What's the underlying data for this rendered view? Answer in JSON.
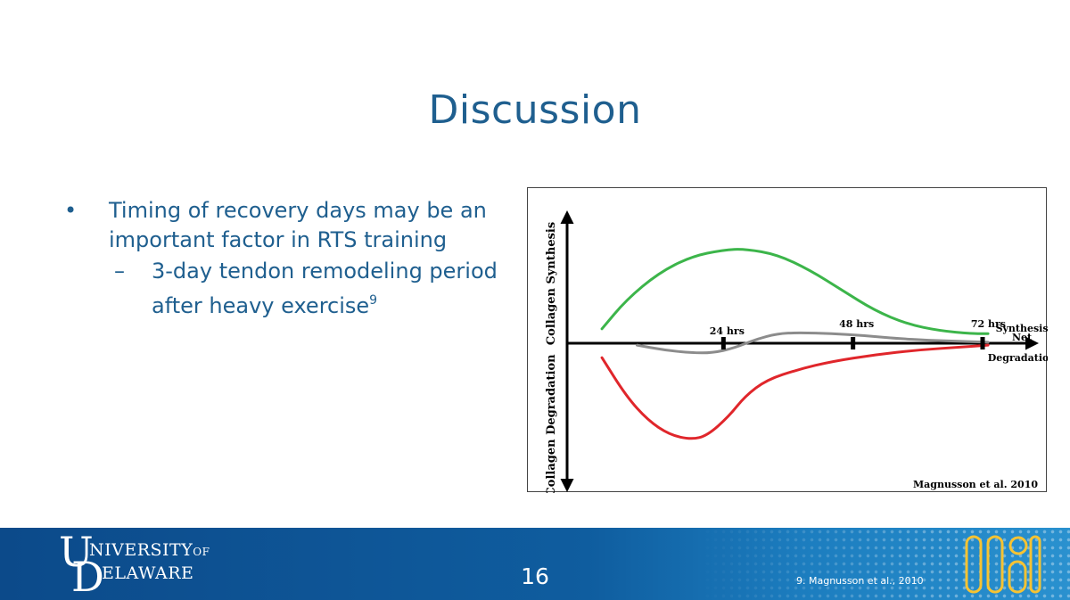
{
  "slide": {
    "title": "Discussion",
    "bullet": "Timing of recovery days may be an important factor in RTS training",
    "sub_bullet": "3-day tendon remodeling period after heavy exercise",
    "sub_bullet_ref": "9",
    "bullet_marker": "•",
    "sub_marker": "–"
  },
  "chart_data": {
    "type": "line",
    "ylabel_top": "Collagen Synthesis",
    "ylabel_bottom": "Collagen Degradation",
    "source": "Magnusson et al. 2010",
    "ticks": [
      {
        "label": "24 hrs",
        "t": 24
      },
      {
        "label": "48 hrs",
        "t": 48
      },
      {
        "label": "72 hrs",
        "t": 72
      }
    ],
    "xlim": [
      0,
      96
    ],
    "ylim": [
      -1,
      1
    ],
    "series": [
      {
        "name": "Synthesis",
        "color": "#3cb54a",
        "points": [
          [
            1.5,
            0.15
          ],
          [
            6,
            0.45
          ],
          [
            12,
            0.73
          ],
          [
            18,
            0.9
          ],
          [
            24,
            0.97
          ],
          [
            28,
            0.98
          ],
          [
            34,
            0.92
          ],
          [
            40,
            0.76
          ],
          [
            46,
            0.55
          ],
          [
            52,
            0.34
          ],
          [
            58,
            0.2
          ],
          [
            64,
            0.13
          ],
          [
            70,
            0.1
          ],
          [
            73,
            0.1
          ]
        ]
      },
      {
        "name": "Net",
        "color": "#8c8c8c",
        "points": [
          [
            8,
            -0.02
          ],
          [
            13,
            -0.07
          ],
          [
            18,
            -0.1
          ],
          [
            22,
            -0.1
          ],
          [
            26,
            -0.05
          ],
          [
            30,
            0.04
          ],
          [
            34,
            0.1
          ],
          [
            38,
            0.11
          ],
          [
            44,
            0.1
          ],
          [
            50,
            0.08
          ],
          [
            56,
            0.05
          ],
          [
            62,
            0.03
          ],
          [
            68,
            0.02
          ],
          [
            73,
            0.01
          ]
        ]
      },
      {
        "name": "Degradation",
        "color": "#e0262b",
        "points": [
          [
            1.5,
            -0.15
          ],
          [
            6,
            -0.55
          ],
          [
            10,
            -0.8
          ],
          [
            14,
            -0.95
          ],
          [
            18,
            -1.0
          ],
          [
            21,
            -0.96
          ],
          [
            25,
            -0.76
          ],
          [
            28,
            -0.55
          ],
          [
            32,
            -0.38
          ],
          [
            38,
            -0.27
          ],
          [
            44,
            -0.19
          ],
          [
            52,
            -0.12
          ],
          [
            60,
            -0.07
          ],
          [
            68,
            -0.04
          ],
          [
            73,
            -0.02
          ]
        ]
      }
    ]
  },
  "footer": {
    "university_line1": "NIVERSITY",
    "university_of": "OF",
    "university_line2": "ELAWARE",
    "logo_u": "U",
    "logo_d": "D",
    "page_number": "16",
    "citation": "9. Magnusson et al., 2010"
  }
}
